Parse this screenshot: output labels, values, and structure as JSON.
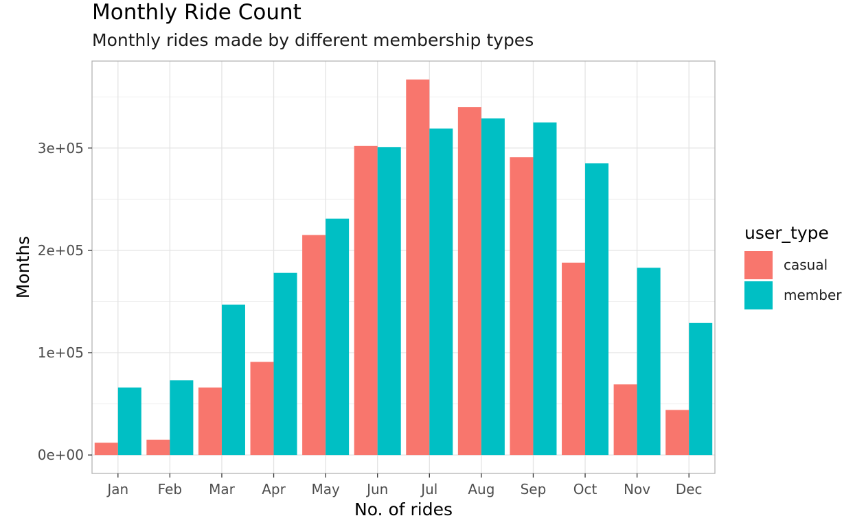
{
  "chart_data": {
    "type": "bar",
    "title": "Monthly Ride Count",
    "subtitle": "Monthly rides made by different membership types",
    "xlabel": "No. of rides",
    "ylabel": "Months",
    "categories": [
      "Jan",
      "Feb",
      "Mar",
      "Apr",
      "May",
      "Jun",
      "Jul",
      "Aug",
      "Sep",
      "Oct",
      "Nov",
      "Dec"
    ],
    "series": [
      {
        "name": "casual",
        "color": "#F8766D",
        "values": [
          12000,
          15000,
          66000,
          91000,
          215000,
          302000,
          367000,
          340000,
          291000,
          188000,
          69000,
          44000
        ]
      },
      {
        "name": "member",
        "color": "#00BFC4",
        "values": [
          66000,
          73000,
          147000,
          178000,
          231000,
          301000,
          319000,
          329000,
          325000,
          285000,
          183000,
          129000
        ]
      }
    ],
    "ylim": [
      -18000,
      385000
    ],
    "yticks": [
      0,
      100000,
      200000,
      300000
    ],
    "ytick_labels": [
      "0e+00",
      "1e+05",
      "2e+05",
      "3e+05"
    ],
    "legend": {
      "title": "user_type",
      "position": "right"
    },
    "grid": true
  }
}
